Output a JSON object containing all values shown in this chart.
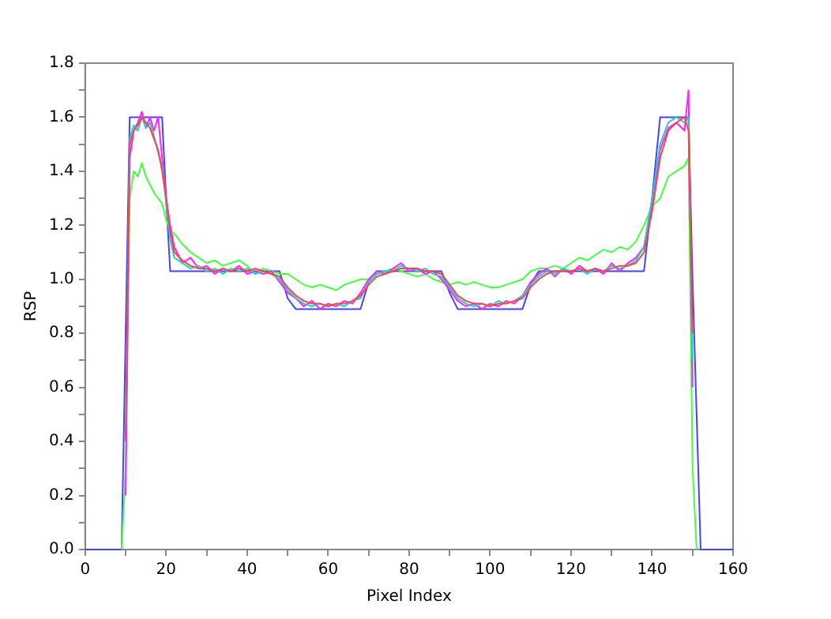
{
  "chart_data": {
    "type": "line",
    "xlabel": "Pixel Index",
    "ylabel": "RSP",
    "x": [
      0,
      9,
      10,
      11,
      12,
      13,
      14,
      15,
      16,
      17,
      18,
      19,
      20,
      21,
      22,
      24,
      26,
      28,
      30,
      32,
      34,
      36,
      38,
      40,
      42,
      44,
      46,
      48,
      50,
      52,
      54,
      56,
      58,
      60,
      62,
      64,
      66,
      68,
      70,
      72,
      74,
      76,
      78,
      80,
      82,
      84,
      86,
      88,
      90,
      92,
      94,
      96,
      98,
      100,
      102,
      104,
      106,
      108,
      110,
      112,
      114,
      116,
      118,
      120,
      122,
      124,
      126,
      128,
      130,
      132,
      134,
      136,
      138,
      140,
      142,
      144,
      146,
      148,
      149,
      150,
      151,
      152,
      160
    ],
    "series": [
      {
        "color": "#ff4444",
        "values": [
          null,
          null,
          0.4,
          1.5,
          1.55,
          1.57,
          1.6,
          1.58,
          1.56,
          1.52,
          1.48,
          1.4,
          1.3,
          1.18,
          1.1,
          1.07,
          1.05,
          1.04,
          1.04,
          1.03,
          1.04,
          1.03,
          1.04,
          1.03,
          1.04,
          1.03,
          1.02,
          1.01,
          0.97,
          0.94,
          0.92,
          0.91,
          0.91,
          0.9,
          0.91,
          0.91,
          0.92,
          0.94,
          0.98,
          1.01,
          1.02,
          1.03,
          1.04,
          1.04,
          1.04,
          1.03,
          1.03,
          1.02,
          0.98,
          0.94,
          0.92,
          0.91,
          0.91,
          0.9,
          0.91,
          0.91,
          0.92,
          0.93,
          0.97,
          1.0,
          1.02,
          1.03,
          1.03,
          1.03,
          1.04,
          1.03,
          1.04,
          1.03,
          1.04,
          1.05,
          1.05,
          1.06,
          1.1,
          1.25,
          1.45,
          1.55,
          1.58,
          1.6,
          1.55,
          0.8,
          null,
          null,
          null
        ]
      },
      {
        "color": "#22cccc",
        "values": [
          null,
          null,
          0.4,
          1.52,
          1.57,
          1.55,
          1.6,
          1.56,
          1.58,
          1.53,
          1.47,
          1.42,
          1.28,
          1.15,
          1.08,
          1.06,
          1.04,
          1.05,
          1.03,
          1.04,
          1.02,
          1.04,
          1.03,
          1.04,
          1.02,
          1.03,
          1.02,
          1.0,
          0.96,
          0.93,
          0.91,
          0.9,
          0.91,
          0.9,
          0.91,
          0.9,
          0.92,
          0.93,
          0.99,
          1.02,
          1.03,
          1.03,
          1.05,
          1.04,
          1.03,
          1.04,
          1.02,
          1.01,
          0.97,
          0.93,
          0.91,
          0.9,
          0.91,
          0.9,
          0.92,
          0.91,
          0.92,
          0.94,
          0.98,
          1.01,
          1.03,
          1.02,
          1.04,
          1.03,
          1.04,
          1.02,
          1.04,
          1.03,
          1.05,
          1.04,
          1.05,
          1.07,
          1.12,
          1.3,
          1.5,
          1.58,
          1.6,
          1.58,
          1.6,
          0.7,
          null,
          null,
          null
        ]
      },
      {
        "color": "#ff22ff",
        "values": [
          null,
          null,
          0.2,
          1.45,
          1.55,
          1.58,
          1.62,
          1.56,
          1.6,
          1.55,
          1.6,
          1.45,
          1.3,
          1.2,
          1.12,
          1.06,
          1.08,
          1.04,
          1.05,
          1.02,
          1.04,
          1.03,
          1.05,
          1.02,
          1.03,
          1.02,
          1.03,
          0.99,
          0.95,
          0.93,
          0.9,
          0.92,
          0.89,
          0.91,
          0.9,
          0.92,
          0.91,
          0.95,
          1.0,
          1.03,
          1.02,
          1.04,
          1.06,
          1.03,
          1.04,
          1.02,
          1.03,
          1.0,
          0.96,
          0.92,
          0.9,
          0.91,
          0.89,
          0.91,
          0.9,
          0.92,
          0.91,
          0.94,
          0.99,
          1.02,
          1.04,
          1.01,
          1.04,
          1.02,
          1.05,
          1.03,
          1.04,
          1.02,
          1.06,
          1.03,
          1.06,
          1.08,
          1.12,
          1.28,
          1.48,
          1.56,
          1.58,
          1.55,
          1.7,
          0.6,
          null,
          null,
          null
        ]
      },
      {
        "color": "#44ff44",
        "values": [
          null,
          0,
          0.3,
          1.3,
          1.4,
          1.38,
          1.43,
          1.38,
          1.35,
          1.32,
          1.3,
          1.28,
          1.22,
          1.18,
          1.17,
          1.13,
          1.1,
          1.08,
          1.06,
          1.07,
          1.05,
          1.06,
          1.07,
          1.05,
          1.02,
          1.04,
          1.03,
          1.02,
          1.02,
          1.0,
          0.98,
          0.97,
          0.98,
          0.97,
          0.96,
          0.98,
          0.99,
          1.0,
          1.0,
          1.02,
          1.03,
          1.04,
          1.03,
          1.02,
          1.01,
          1.02,
          1.0,
          0.99,
          0.98,
          0.99,
          0.98,
          0.99,
          0.98,
          0.97,
          0.97,
          0.98,
          0.99,
          1.0,
          1.03,
          1.04,
          1.04,
          1.05,
          1.04,
          1.06,
          1.08,
          1.07,
          1.09,
          1.11,
          1.1,
          1.12,
          1.11,
          1.14,
          1.2,
          1.27,
          1.3,
          1.38,
          1.4,
          1.42,
          1.45,
          0.3,
          0,
          null,
          null
        ]
      },
      {
        "color": "#4444ff",
        "values": [
          0,
          0,
          0.8,
          1.6,
          1.6,
          1.6,
          1.6,
          1.6,
          1.6,
          1.6,
          1.6,
          1.6,
          1.3,
          1.03,
          1.03,
          1.03,
          1.03,
          1.03,
          1.03,
          1.03,
          1.03,
          1.03,
          1.03,
          1.03,
          1.03,
          1.03,
          1.03,
          1.03,
          0.93,
          0.89,
          0.89,
          0.89,
          0.89,
          0.89,
          0.89,
          0.89,
          0.89,
          0.89,
          0.99,
          1.03,
          1.03,
          1.03,
          1.03,
          1.03,
          1.03,
          1.03,
          1.03,
          1.03,
          0.95,
          0.89,
          0.89,
          0.89,
          0.89,
          0.89,
          0.89,
          0.89,
          0.89,
          0.89,
          0.98,
          1.03,
          1.03,
          1.03,
          1.03,
          1.03,
          1.03,
          1.03,
          1.03,
          1.03,
          1.03,
          1.03,
          1.03,
          1.03,
          1.03,
          1.3,
          1.6,
          1.6,
          1.6,
          1.6,
          1.6,
          1.0,
          0.5,
          0,
          0
        ]
      }
    ],
    "xlim": [
      0,
      160
    ],
    "xticks": [
      0,
      {
        "value": 10,
        "label": null
      },
      20,
      {
        "value": 30,
        "label": null
      },
      40,
      {
        "value": 50,
        "label": null
      },
      60,
      {
        "value": 70,
        "label": null
      },
      80,
      {
        "value": 90,
        "label": null
      },
      100,
      {
        "value": 110,
        "label": null
      },
      120,
      {
        "value": 130,
        "label": null
      },
      140,
      {
        "value": 150,
        "label": null
      },
      160
    ],
    "ylim": [
      0,
      1.8
    ],
    "yticks": [
      {
        "value": 0,
        "label": "0.0"
      },
      {
        "value": 0.1,
        "label": null
      },
      {
        "value": 0.2,
        "label": "0.2"
      },
      {
        "value": 0.3,
        "label": null
      },
      {
        "value": 0.4,
        "label": "0.4"
      },
      {
        "value": 0.5,
        "label": null
      },
      {
        "value": 0.6,
        "label": "0.6"
      },
      {
        "value": 0.7,
        "label": null
      },
      {
        "value": 0.8,
        "label": "0.8"
      },
      {
        "value": 0.9,
        "label": null
      },
      {
        "value": 1.0,
        "label": "1.0"
      },
      {
        "value": 1.1,
        "label": null
      },
      {
        "value": 1.2,
        "label": "1.2"
      },
      {
        "value": 1.3,
        "label": null
      },
      {
        "value": 1.4,
        "label": "1.4"
      },
      {
        "value": 1.5,
        "label": null
      },
      {
        "value": 1.6,
        "label": "1.6"
      },
      {
        "value": 1.7,
        "label": null
      },
      {
        "value": 1.8,
        "label": "1.8"
      }
    ],
    "grid": false,
    "legend": false,
    "marker": "none",
    "line_style": "solid"
  }
}
